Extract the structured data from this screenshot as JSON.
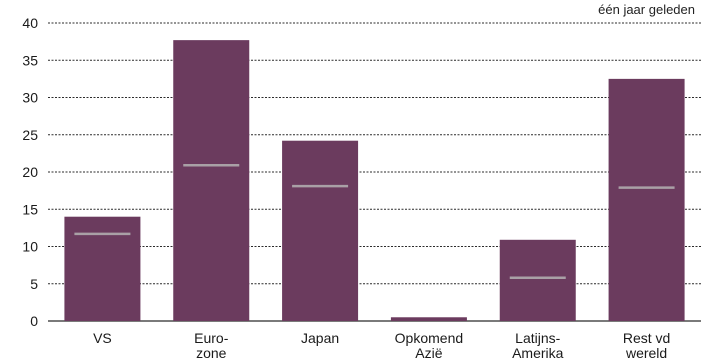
{
  "legend": {
    "note": "één jaar geleden"
  },
  "colors": {
    "bar": "#6b3b5e",
    "marker": "#a9a0a6",
    "grid": "#2b2b2b",
    "text": "#1a1a1a"
  },
  "chart_data": {
    "type": "bar",
    "categories": [
      [
        "VS"
      ],
      [
        "Euro-",
        "zone"
      ],
      [
        "Japan"
      ],
      [
        "Opkomend",
        "Azië"
      ],
      [
        "Latijns-",
        "Amerika"
      ],
      [
        "Rest vd",
        "wereld"
      ]
    ],
    "series": [
      {
        "values": [
          14,
          37.7,
          24.2,
          0.5,
          10.9,
          32.5
        ]
      },
      {
        "name": "één jaar geleden",
        "values": [
          11.7,
          20.9,
          18.1,
          null,
          5.8,
          17.9
        ]
      }
    ],
    "ylim": [
      0,
      40
    ],
    "yticks": [
      0,
      5,
      10,
      15,
      20,
      25,
      30,
      35,
      40
    ],
    "grid": true
  }
}
